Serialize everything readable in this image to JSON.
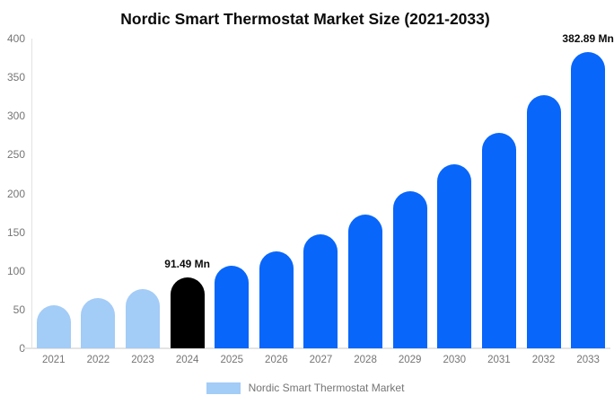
{
  "chart_data": {
    "type": "bar",
    "title": "Nordic Smart Thermostat Market Size (2021-2033)",
    "xlabel": "",
    "ylabel": "",
    "categories": [
      "2021",
      "2022",
      "2023",
      "2024",
      "2025",
      "2026",
      "2027",
      "2028",
      "2029",
      "2030",
      "2031",
      "2032",
      "2033"
    ],
    "values": [
      56,
      65,
      77,
      91.49,
      107.26,
      125.75,
      147.43,
      172.84,
      202.64,
      237.57,
      278.52,
      326.54,
      382.89
    ],
    "bar_colors": [
      "#A3CCF7",
      "#A3CCF7",
      "#A3CCF7",
      "#000000",
      "#0866FA",
      "#0866FA",
      "#0866FA",
      "#0866FA",
      "#0866FA",
      "#0866FA",
      "#0866FA",
      "#0866FA",
      "#0866FA"
    ],
    "point_labels": {
      "2024": "91.49 Mn",
      "2033": "382.89 Mn"
    },
    "ylim": [
      0,
      400
    ],
    "yticks": [
      0,
      50,
      100,
      150,
      200,
      250,
      300,
      350,
      400
    ],
    "grid": false,
    "legend_position": "bottom",
    "legend": {
      "label": "Nordic Smart Thermostat Market",
      "color": "#A3CCF7"
    },
    "colors": {
      "historical_bar": "#A3CCF7",
      "highlight_bar": "#000000",
      "forecast_bar": "#0866FA",
      "axis_line": "#e2e2e2",
      "tick_text": "#757575",
      "title_text": "#0a0a0a"
    }
  }
}
